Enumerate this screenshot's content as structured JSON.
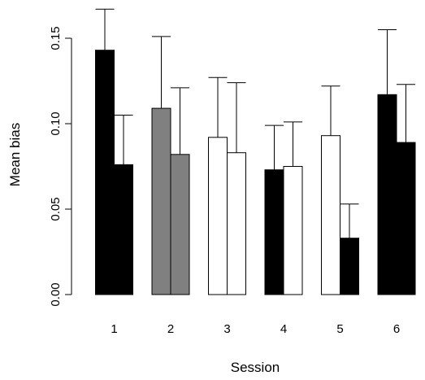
{
  "chart_data": {
    "type": "bar",
    "categories": [
      "1",
      "2",
      "3",
      "4",
      "5",
      "6"
    ],
    "xlabel": "Session",
    "ylabel": "Mean bias",
    "ylim": [
      0,
      0.165
    ],
    "yticks": [
      "0.00",
      "0.05",
      "0.10",
      "0.15"
    ],
    "ytick_values": [
      0,
      0.05,
      0.1,
      0.15
    ],
    "grid": false,
    "groups": [
      {
        "category": "1",
        "bars": [
          {
            "value": 0.143,
            "error_upper": 0.167,
            "fill": "#000000"
          },
          {
            "value": 0.076,
            "error_upper": 0.105,
            "fill": "#000000"
          }
        ]
      },
      {
        "category": "2",
        "bars": [
          {
            "value": 0.109,
            "error_upper": 0.151,
            "fill": "#808080"
          },
          {
            "value": 0.082,
            "error_upper": 0.121,
            "fill": "#808080"
          }
        ]
      },
      {
        "category": "3",
        "bars": [
          {
            "value": 0.092,
            "error_upper": 0.127,
            "fill": "#ffffff"
          },
          {
            "value": 0.083,
            "error_upper": 0.124,
            "fill": "#ffffff"
          }
        ]
      },
      {
        "category": "4",
        "bars": [
          {
            "value": 0.073,
            "error_upper": 0.099,
            "fill": "#000000"
          },
          {
            "value": 0.075,
            "error_upper": 0.101,
            "fill": "#ffffff"
          }
        ]
      },
      {
        "category": "5",
        "bars": [
          {
            "value": 0.093,
            "error_upper": 0.122,
            "fill": "#ffffff"
          },
          {
            "value": 0.033,
            "error_upper": 0.053,
            "fill": "#000000"
          }
        ]
      },
      {
        "category": "6",
        "bars": [
          {
            "value": 0.117,
            "error_upper": 0.155,
            "fill": "#000000"
          },
          {
            "value": 0.089,
            "error_upper": 0.123,
            "fill": "#000000"
          }
        ]
      }
    ]
  }
}
